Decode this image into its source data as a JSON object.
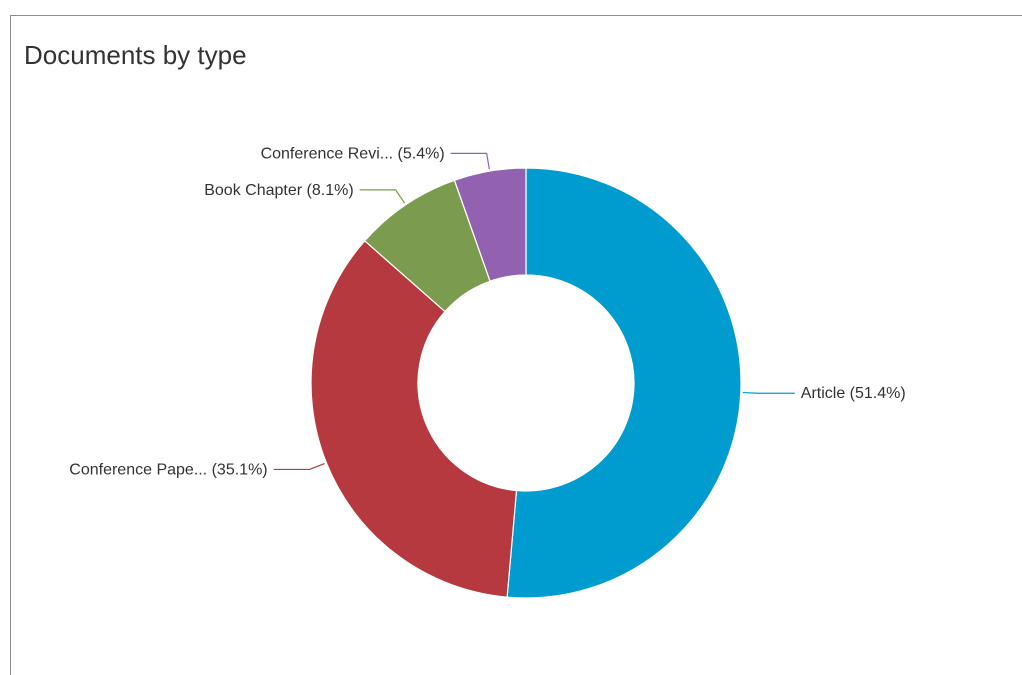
{
  "chart_data": {
    "type": "pie",
    "variant": "donut",
    "title": "Documents by type",
    "slices": [
      {
        "name": "Article",
        "percent": 51.4,
        "label": "Article (51.4%)",
        "color": "#009ccf"
      },
      {
        "name": "Conference Paper",
        "percent": 35.1,
        "label": "Conference Pape... (35.1%)",
        "color": "#b5393f"
      },
      {
        "name": "Book Chapter",
        "percent": 8.1,
        "label": "Book Chapter (8.1%)",
        "color": "#7b9b4f"
      },
      {
        "name": "Conference Review",
        "percent": 5.4,
        "label": "Conference Revi... (5.4%)",
        "color": "#9262b0"
      }
    ],
    "legend": "none"
  }
}
